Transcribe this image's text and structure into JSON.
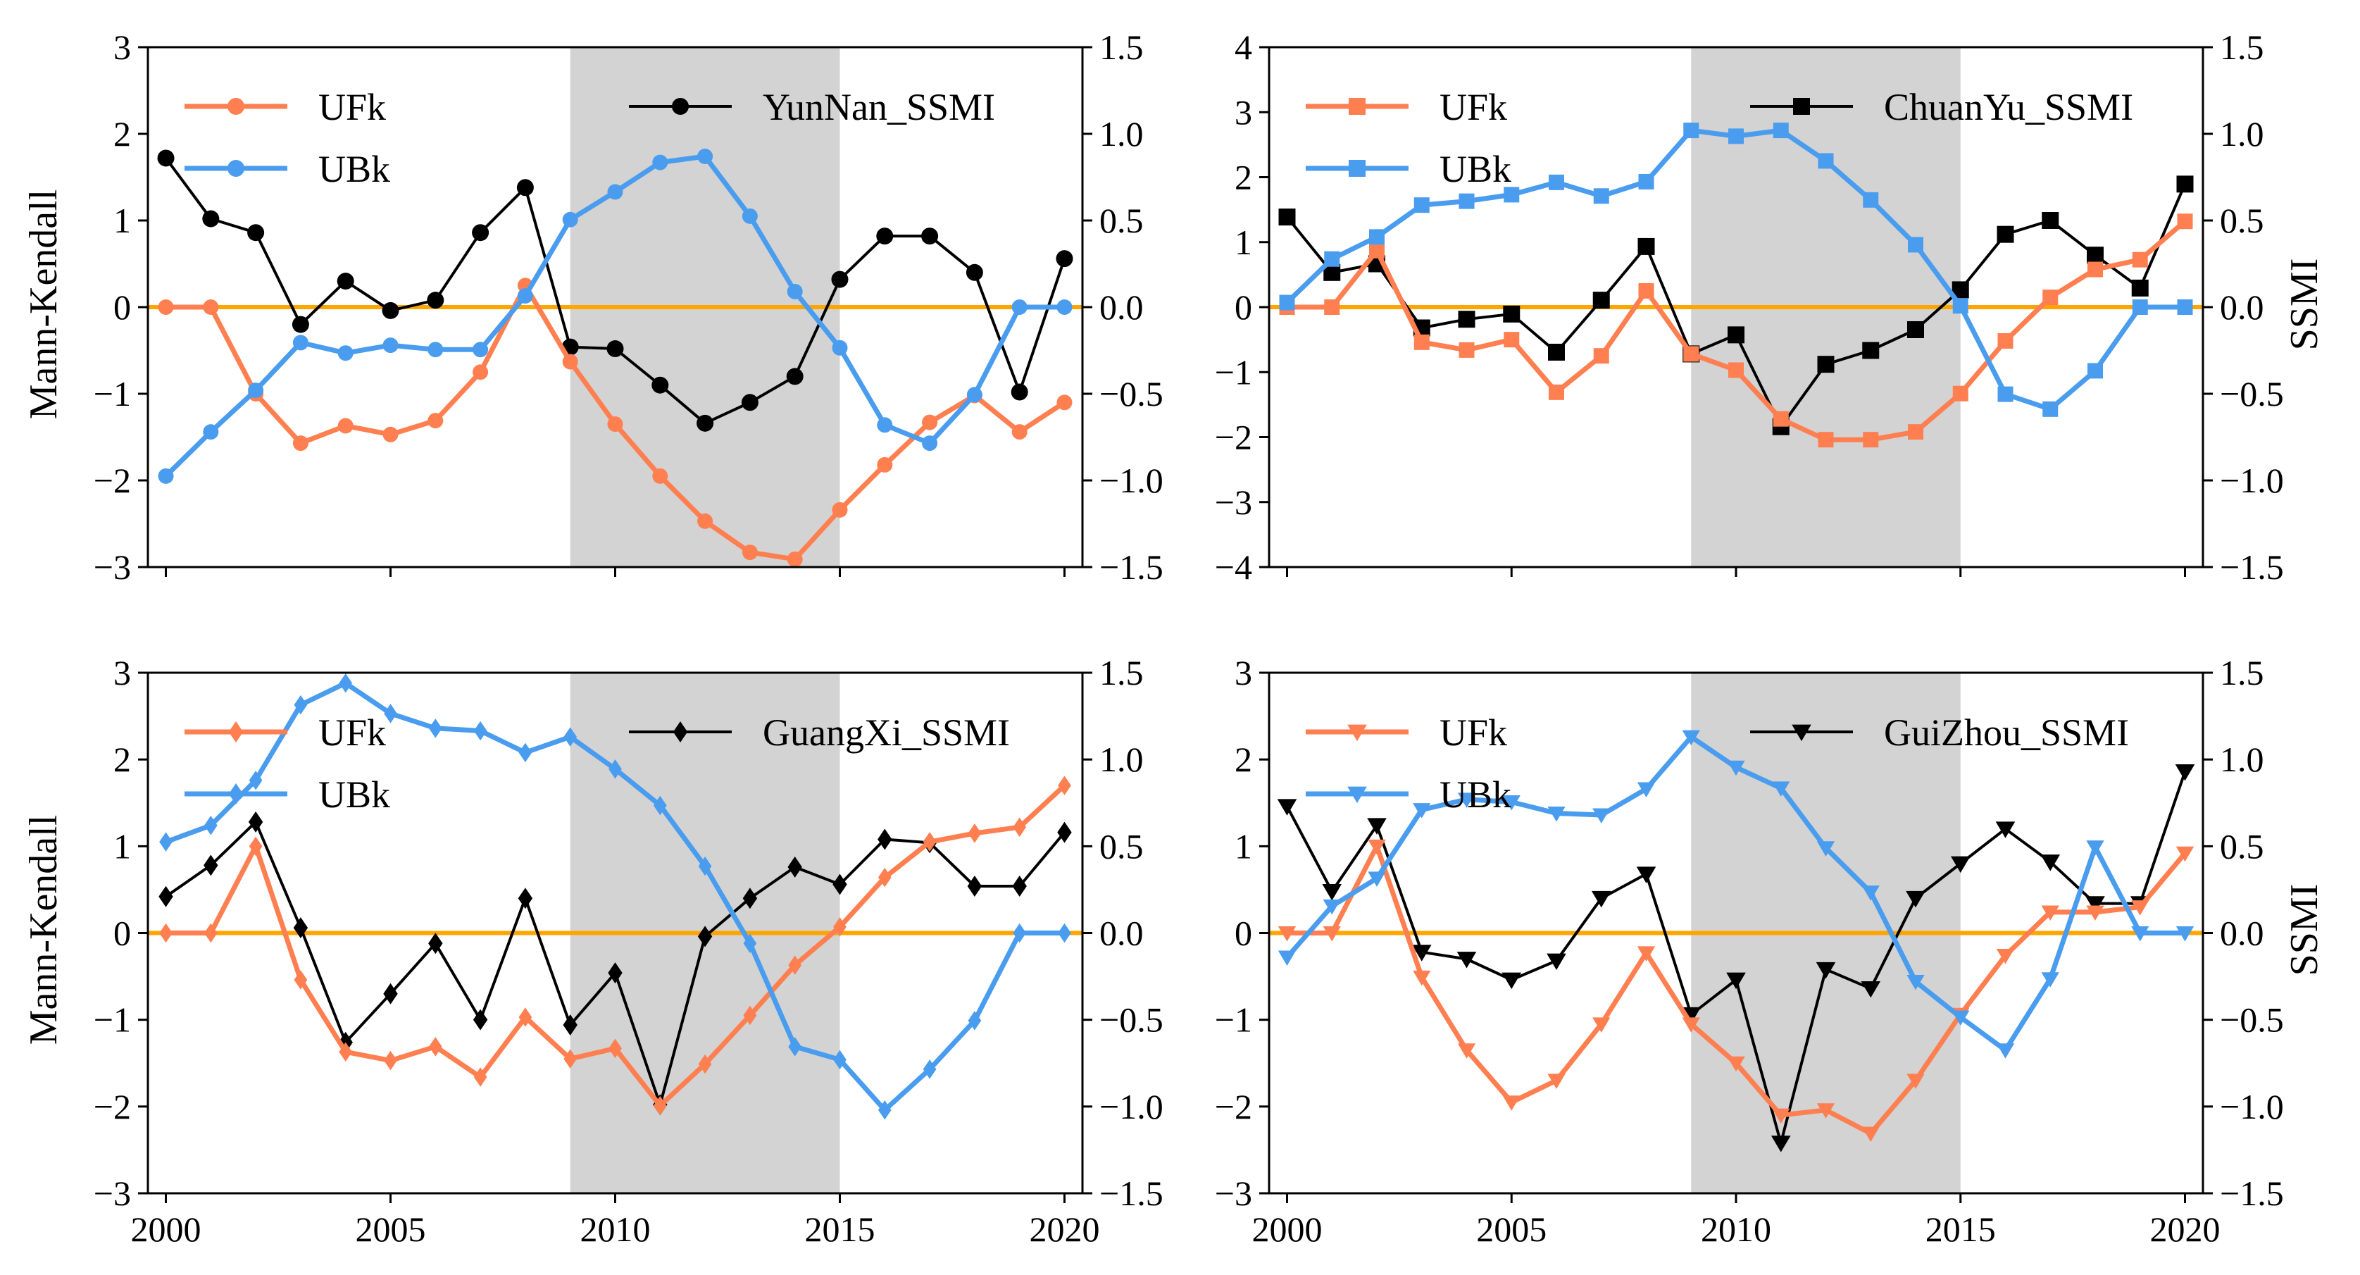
{
  "figure": {
    "left_ylabel": "Mann-Kendall",
    "right_ylabel": "SSMI"
  },
  "colors": {
    "ufk": "#FF7F50",
    "ubk": "#4A9DEE",
    "ssmi": "#000000",
    "zero_line": "#FFA500",
    "shade": "#D3D3D3"
  },
  "chart_data": [
    {
      "type": "line",
      "name": "YunNan",
      "marker": "circle",
      "x": [
        2000,
        2001,
        2002,
        2003,
        2004,
        2005,
        2006,
        2007,
        2008,
        2009,
        2010,
        2011,
        2012,
        2013,
        2014,
        2015,
        2016,
        2017,
        2018,
        2019,
        2020
      ],
      "xlim": [
        1999.6,
        2020.4
      ],
      "xticks": [
        2000,
        2005,
        2010,
        2015,
        2020
      ],
      "ylim_left": [
        -3,
        3
      ],
      "yticks_left": [
        -3,
        -2,
        -1,
        0,
        1,
        2,
        3
      ],
      "ylim_right": [
        -1.5,
        1.5
      ],
      "yticks_right": [
        "-1.5",
        "-1.0",
        "-0.5",
        "0.0",
        "0.5",
        "1.0",
        "1.5"
      ],
      "shade_x": [
        2009,
        2015
      ],
      "show_left_label": true,
      "show_right_label": false,
      "show_xticklabels": false,
      "series": [
        {
          "name": "UFk",
          "axis": "left",
          "values": [
            0,
            0,
            -1.0,
            -1.57,
            -1.37,
            -1.47,
            -1.31,
            -0.75,
            0.25,
            -0.63,
            -1.35,
            -1.95,
            -2.47,
            -2.83,
            -2.91,
            -2.34,
            -1.82,
            -1.33,
            -1.02,
            -1.44,
            -1.1
          ]
        },
        {
          "name": "UBk",
          "axis": "left",
          "values": [
            -1.95,
            -1.44,
            -0.96,
            -0.41,
            -0.53,
            -0.44,
            -0.49,
            -0.49,
            0.13,
            1.01,
            1.33,
            1.67,
            1.74,
            1.05,
            0.18,
            -0.47,
            -1.36,
            -1.57,
            -1.01,
            0,
            0
          ]
        },
        {
          "name": "YunNan_SSMI",
          "axis": "right",
          "values": [
            0.86,
            0.51,
            0.43,
            -0.1,
            0.15,
            -0.02,
            0.04,
            0.43,
            0.69,
            -0.23,
            -0.24,
            -0.45,
            -0.67,
            -0.55,
            -0.4,
            0.16,
            0.41,
            0.41,
            0.2,
            -0.49,
            0.28
          ]
        }
      ]
    },
    {
      "type": "line",
      "name": "ChuanYu",
      "marker": "square",
      "x": [
        2000,
        2001,
        2002,
        2003,
        2004,
        2005,
        2006,
        2007,
        2008,
        2009,
        2010,
        2011,
        2012,
        2013,
        2014,
        2015,
        2016,
        2017,
        2018,
        2019,
        2020
      ],
      "xlim": [
        1999.6,
        2020.4
      ],
      "xticks": [
        2000,
        2005,
        2010,
        2015,
        2020
      ],
      "ylim_left": [
        -4,
        4
      ],
      "yticks_left": [
        -4,
        -3,
        -2,
        -1,
        0,
        1,
        2,
        3,
        4
      ],
      "ylim_right": [
        -1.5,
        1.5
      ],
      "yticks_right": [
        "-1.5",
        "-1.0",
        "-0.5",
        "0.0",
        "0.5",
        "1.0",
        "1.5"
      ],
      "shade_x": [
        2009,
        2015
      ],
      "show_left_label": false,
      "show_right_label": true,
      "show_xticklabels": false,
      "series": [
        {
          "name": "UFk",
          "axis": "left",
          "values": [
            0,
            0,
            0.87,
            -0.54,
            -0.66,
            -0.5,
            -1.31,
            -0.75,
            0.25,
            -0.72,
            -0.97,
            -1.72,
            -2.04,
            -2.04,
            -1.92,
            -1.33,
            -0.52,
            0.15,
            0.58,
            0.73,
            1.32
          ]
        },
        {
          "name": "UBk",
          "axis": "left",
          "values": [
            0.07,
            0.74,
            1.08,
            1.57,
            1.63,
            1.73,
            1.92,
            1.71,
            1.93,
            2.72,
            2.63,
            2.72,
            2.25,
            1.65,
            0.96,
            0.02,
            -1.34,
            -1.57,
            -0.98,
            0,
            0
          ]
        },
        {
          "name": "ChuanYu_SSMI",
          "axis": "right",
          "values": [
            0.52,
            0.2,
            0.25,
            -0.12,
            -0.07,
            -0.04,
            -0.26,
            0.04,
            0.35,
            -0.27,
            -0.16,
            -0.69,
            -0.33,
            -0.25,
            -0.13,
            0.1,
            0.42,
            0.5,
            0.3,
            0.11,
            0.71
          ]
        }
      ]
    },
    {
      "type": "line",
      "name": "GuangXi",
      "marker": "diamond",
      "x": [
        2000,
        2001,
        2002,
        2003,
        2004,
        2005,
        2006,
        2007,
        2008,
        2009,
        2010,
        2011,
        2012,
        2013,
        2014,
        2015,
        2016,
        2017,
        2018,
        2019,
        2020
      ],
      "xlim": [
        1999.6,
        2020.4
      ],
      "xticks": [
        2000,
        2005,
        2010,
        2015,
        2020
      ],
      "ylim_left": [
        -3,
        3
      ],
      "yticks_left": [
        -3,
        -2,
        -1,
        0,
        1,
        2,
        3
      ],
      "ylim_right": [
        -1.5,
        1.5
      ],
      "yticks_right": [
        "-1.5",
        "-1.0",
        "-0.5",
        "0.0",
        "0.5",
        "1.0",
        "1.5"
      ],
      "shade_x": [
        2009,
        2015
      ],
      "show_left_label": true,
      "show_right_label": false,
      "show_xticklabels": true,
      "series": [
        {
          "name": "UFk",
          "axis": "left",
          "values": [
            0,
            0,
            1.0,
            -0.54,
            -1.37,
            -1.47,
            -1.31,
            -1.66,
            -0.97,
            -1.45,
            -1.33,
            -1.99,
            -1.51,
            -0.95,
            -0.37,
            0.07,
            0.64,
            1.05,
            1.15,
            1.22,
            1.7
          ]
        },
        {
          "name": "UBk",
          "axis": "left",
          "values": [
            1.05,
            1.24,
            1.76,
            2.63,
            2.88,
            2.53,
            2.36,
            2.33,
            2.08,
            2.26,
            1.89,
            1.47,
            0.77,
            -0.12,
            -1.31,
            -1.46,
            -2.04,
            -1.57,
            -1.01,
            0,
            0
          ]
        },
        {
          "name": "GuangXi_SSMI",
          "axis": "right",
          "values": [
            0.21,
            0.39,
            0.64,
            0.03,
            -0.63,
            -0.35,
            -0.06,
            -0.5,
            0.2,
            -0.53,
            -0.23,
            -0.99,
            -0.02,
            0.2,
            0.38,
            0.28,
            0.54,
            0.52,
            0.27,
            0.27,
            0.58
          ]
        }
      ]
    },
    {
      "type": "line",
      "name": "GuiZhou",
      "marker": "triangle-down",
      "x": [
        2000,
        2001,
        2002,
        2003,
        2004,
        2005,
        2006,
        2007,
        2008,
        2009,
        2010,
        2011,
        2012,
        2013,
        2014,
        2015,
        2016,
        2017,
        2018,
        2019,
        2020
      ],
      "xlim": [
        1999.6,
        2020.4
      ],
      "xticks": [
        2000,
        2005,
        2010,
        2015,
        2020
      ],
      "ylim_left": [
        -3,
        3
      ],
      "yticks_left": [
        -3,
        -2,
        -1,
        0,
        1,
        2,
        3
      ],
      "ylim_right": [
        -1.5,
        1.5
      ],
      "yticks_right": [
        "-1.5",
        "-1.0",
        "-0.5",
        "0.0",
        "0.5",
        "1.0",
        "1.5"
      ],
      "shade_x": [
        2009,
        2015
      ],
      "show_left_label": false,
      "show_right_label": true,
      "show_xticklabels": true,
      "series": [
        {
          "name": "UFk",
          "axis": "left",
          "values": [
            0,
            0,
            1.0,
            -0.51,
            -1.35,
            -1.95,
            -1.7,
            -1.05,
            -0.23,
            -1.05,
            -1.5,
            -2.1,
            -2.04,
            -2.31,
            -1.7,
            -0.94,
            -0.26,
            0.24,
            0.24,
            0.3,
            0.92
          ]
        },
        {
          "name": "UBk",
          "axis": "left",
          "values": [
            -0.28,
            0.31,
            0.63,
            1.42,
            1.54,
            1.51,
            1.38,
            1.36,
            1.66,
            2.26,
            1.91,
            1.67,
            0.98,
            0.47,
            -0.56,
            -0.97,
            -1.35,
            -0.53,
            0.99,
            0,
            0
          ]
        },
        {
          "name": "GuiZhou_SSMI",
          "axis": "right",
          "values": [
            0.73,
            0.24,
            0.62,
            -0.11,
            -0.15,
            -0.27,
            -0.16,
            0.2,
            0.34,
            -0.47,
            -0.27,
            -1.21,
            -0.21,
            -0.32,
            0.2,
            0.4,
            0.6,
            0.41,
            0.17,
            0.17,
            0.93
          ]
        }
      ]
    }
  ]
}
